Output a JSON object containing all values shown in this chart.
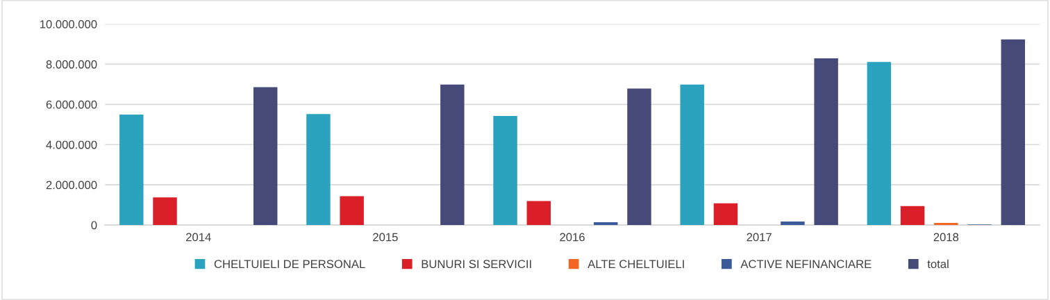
{
  "chart_data": {
    "type": "bar",
    "categories": [
      "2014",
      "2015",
      "2016",
      "2017",
      "2018"
    ],
    "series": [
      {
        "name": "CHELTUIELI DE PERSONAL",
        "color": "#2ba3be",
        "values": [
          5490000,
          5520000,
          5420000,
          6990000,
          8110000
        ]
      },
      {
        "name": "BUNURI SI SERVICII",
        "color": "#da1f28",
        "values": [
          1370000,
          1430000,
          1190000,
          1080000,
          940000
        ]
      },
      {
        "name": "ALTE CHELTUIELI",
        "color": "#f26522",
        "values": [
          null,
          null,
          null,
          null,
          100000
        ]
      },
      {
        "name": "ACTIVE NEFINANCIARE",
        "color": "#3a5a9a",
        "values": [
          null,
          null,
          140000,
          170000,
          30000
        ]
      },
      {
        "name": "total",
        "color": "#464a78",
        "values": [
          6860000,
          6990000,
          6790000,
          8290000,
          9230000
        ]
      }
    ],
    "ylim": [
      0,
      10000000
    ],
    "yticks": [
      {
        "value": 0,
        "label": "0"
      },
      {
        "value": 2000000,
        "label": "2.000.000"
      },
      {
        "value": 4000000,
        "label": "4.000.000"
      },
      {
        "value": 6000000,
        "label": "6.000.000"
      },
      {
        "value": 8000000,
        "label": "8.000.000"
      },
      {
        "value": 10000000,
        "label": "10.000.000"
      }
    ],
    "grid": "y",
    "legend": "bottom"
  }
}
